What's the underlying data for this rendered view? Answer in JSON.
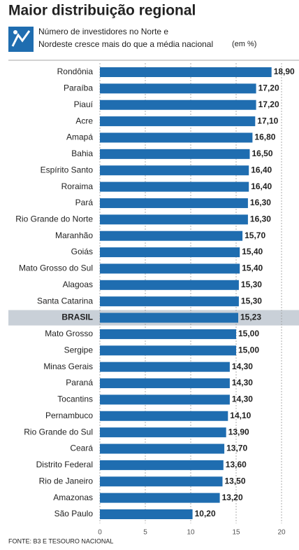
{
  "chart_data": {
    "type": "hbar",
    "title": "Maior distribuição regional",
    "subtitle": [
      "Número de investidores no Norte e",
      "Nordeste cresce mais do que a média nacional"
    ],
    "unit": "(em %)",
    "source": "FONTE: B3 E TESOURO NACIONAL",
    "categories": [
      "Rondônia",
      "Paraíba",
      "Piauí",
      "Acre",
      "Amapá",
      "Bahia",
      "Espírito Santo",
      "Roraima",
      "Pará",
      "Rio Grande do Norte",
      "Maranhão",
      "Goiás",
      "Mato Grosso do Sul",
      "Alagoas",
      "Santa Catarina",
      "BRASIL",
      "Mato Grosso",
      "Sergipe",
      "Minas Gerais",
      "Paraná",
      "Tocantins",
      "Pernambuco",
      "Rio Grande do Sul",
      "Ceará",
      "Distrito Federal",
      "Rio de Janeiro",
      "Amazonas",
      "São Paulo"
    ],
    "values": [
      18.9,
      17.2,
      17.2,
      17.1,
      16.8,
      16.5,
      16.4,
      16.4,
      16.3,
      16.3,
      15.7,
      15.4,
      15.4,
      15.3,
      15.3,
      15.23,
      15.0,
      15.0,
      14.3,
      14.3,
      14.3,
      14.1,
      13.9,
      13.7,
      13.6,
      13.5,
      13.2,
      10.2
    ],
    "value_labels": [
      "18,90",
      "17,20",
      "17,20",
      "17,10",
      "16,80",
      "16,50",
      "16,40",
      "16,40",
      "16,30",
      "16,30",
      "15,70",
      "15,40",
      "15,40",
      "15,30",
      "15,30",
      "15,23",
      "15,00",
      "15,00",
      "14,30",
      "14,30",
      "14,30",
      "14,10",
      "13,90",
      "13,70",
      "13,60",
      "13,50",
      "13,20",
      "10,20"
    ],
    "highlight_index": 15,
    "color": "#1f6db0",
    "highlight_color": "#c9d0d8",
    "xlim": [
      0,
      20
    ],
    "xticks": [
      0,
      5,
      10,
      15,
      20
    ],
    "grid": true
  }
}
